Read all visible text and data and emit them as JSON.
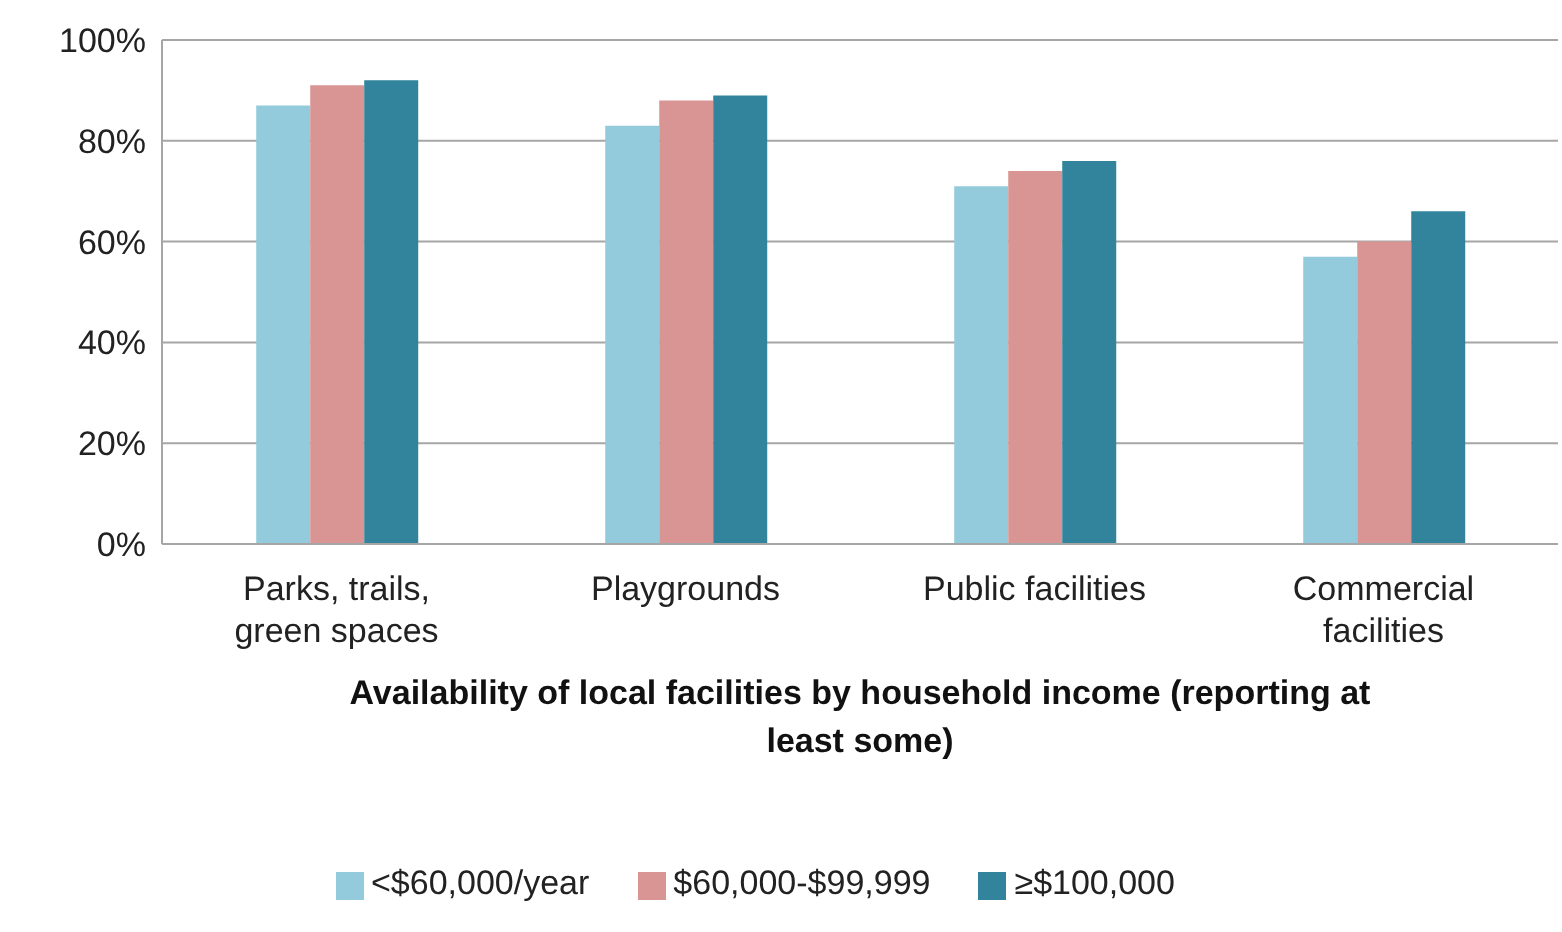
{
  "chart_data": {
    "type": "bar",
    "xlabel": "Availability of local facilities by household income (reporting at least some)",
    "categories": [
      "Parks, trails, green spaces",
      "Playgrounds",
      "Public facilities",
      "Commercial facilities"
    ],
    "series": [
      {
        "name": "<$60,000/year",
        "color": "#93cbdc",
        "values": [
          87,
          83,
          71,
          57
        ]
      },
      {
        "name": "$60,000-$99,999",
        "color": "#d99593",
        "values": [
          91,
          88,
          74,
          60
        ]
      },
      {
        "name": "≥$100,000",
        "color": "#31849b",
        "values": [
          92,
          89,
          76,
          66
        ]
      }
    ],
    "ylim": [
      0,
      100
    ],
    "yticks": [
      {
        "value": 0,
        "label": "0%"
      },
      {
        "value": 20,
        "label": "20%"
      },
      {
        "value": 40,
        "label": "40%"
      },
      {
        "value": 60,
        "label": "60%"
      },
      {
        "value": 80,
        "label": "80%"
      },
      {
        "value": 100,
        "label": "100%"
      }
    ],
    "grid": "y",
    "legend": "bottom"
  }
}
